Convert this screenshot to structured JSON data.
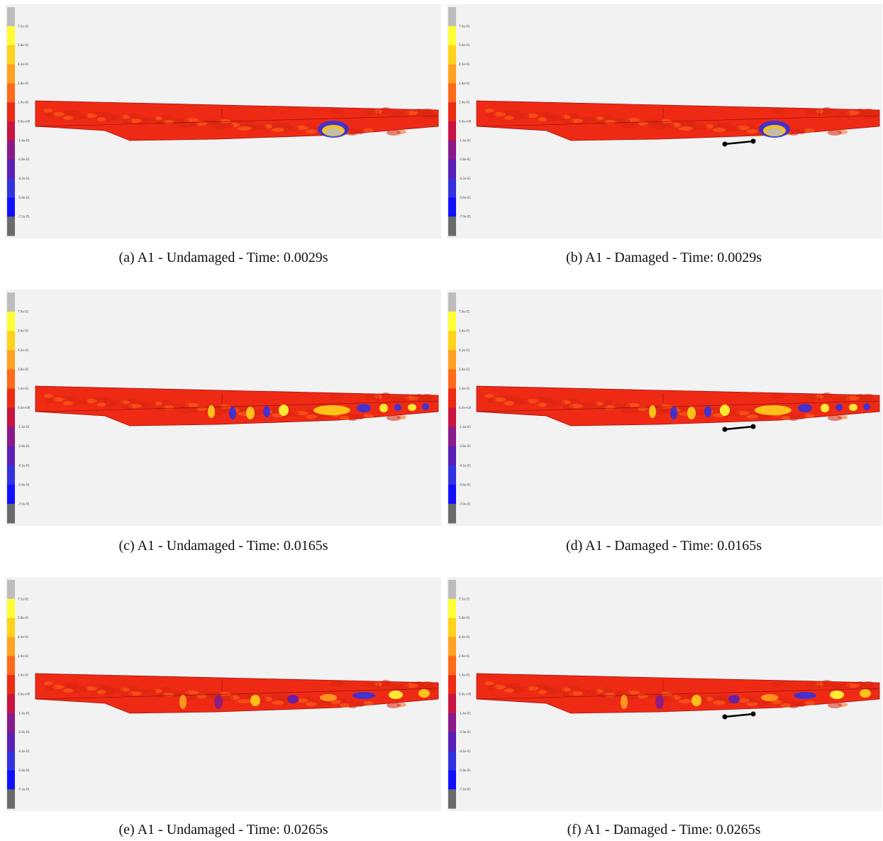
{
  "figure": {
    "panels": [
      {
        "id": "a",
        "caption": "(a)  A1 - Undamaged - Time: 0.0029s",
        "damaged": false,
        "time_s": 0.0029,
        "legend_ticks": [
          "7.2e-01",
          "5.8e-01",
          "4.2e-01",
          "2.8e-01",
          "1.4e-01",
          "0.0e+00",
          "-1.4e-01",
          "-2.8e-01",
          "-4.2e-01",
          "-5.8e-01",
          "-7.2e-01"
        ]
      },
      {
        "id": "b",
        "caption": "(b)  A1 - Damaged - Time: 0.0029s",
        "damaged": true,
        "time_s": 0.0029,
        "legend_ticks": [
          "7.0e-01",
          "5.6e-01",
          "4.2e-01",
          "2.8e-01",
          "1.4e-01",
          "0.0e+00",
          "-1.4e-01",
          "-2.8e-01",
          "-4.2e-01",
          "-5.6e-01",
          "-7.0e-01"
        ]
      },
      {
        "id": "c",
        "caption": "(c)  A1 - Undamaged - Time: 0.0165s",
        "damaged": false,
        "time_s": 0.0165,
        "legend_ticks": [
          "7.0e-01",
          "5.6e-01",
          "4.2e-01",
          "2.8e-01",
          "1.4e-01",
          "0.0e+00",
          "-1.4e-01",
          "-2.8e-01",
          "-4.2e-01",
          "-5.6e-01",
          "-7.0e-01"
        ]
      },
      {
        "id": "d",
        "caption": "(d)  A1 - Damaged - Time: 0.0165s",
        "damaged": true,
        "time_s": 0.0165,
        "legend_ticks": [
          "7.0e-01",
          "5.6e-01",
          "4.2e-01",
          "2.8e-01",
          "1.4e-01",
          "0.0e+00",
          "-1.4e-01",
          "-2.8e-01",
          "-4.2e-01",
          "-5.6e-01",
          "-7.0e-01"
        ]
      },
      {
        "id": "e",
        "caption": "(e)  A1 - Undamaged - Time: 0.0265s",
        "damaged": false,
        "time_s": 0.0265,
        "legend_ticks": [
          "7.2e-01",
          "5.8e-01",
          "4.4e-01",
          "2.9e-01",
          "1.4e-01",
          "0.0e+00",
          "-1.4e-01",
          "-2.9e-01",
          "-4.4e-01",
          "-5.8e-01",
          "-7.2e-01"
        ]
      },
      {
        "id": "f",
        "caption": "(f)  A1 - Damaged - Time: 0.0265s",
        "damaged": true,
        "time_s": 0.0265,
        "legend_ticks": [
          "7.2e-01",
          "5.8e-01",
          "4.4e-01",
          "2.9e-01",
          "1.4e-01",
          "0.0e+00",
          "-1.4e-01",
          "-2.9e-01",
          "-4.4e-01",
          "-5.8e-01",
          "-7.2e-01"
        ]
      }
    ],
    "legend_colors": [
      "#bdbdbd",
      "#ffff33",
      "#ffd21a",
      "#ffa21f",
      "#ff6a1a",
      "#ef2a14",
      "#c81440",
      "#8a1a8a",
      "#5a1fb5",
      "#3232e0",
      "#1010ff",
      "#6a6a6a"
    ]
  }
}
